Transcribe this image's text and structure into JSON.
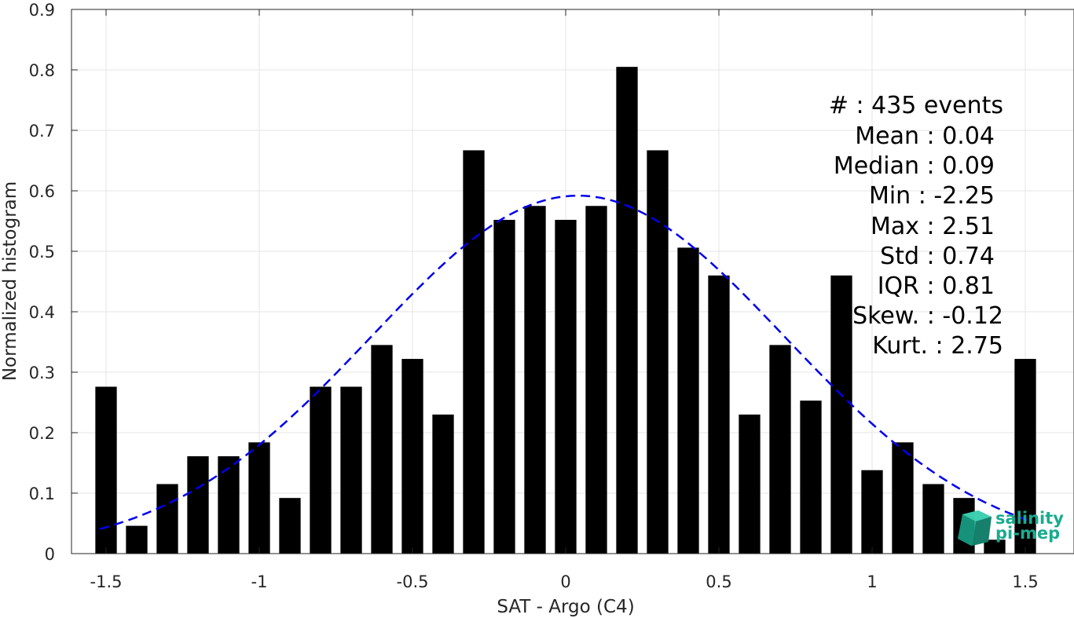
{
  "chart_data": {
    "type": "bar",
    "xlabel": "SAT - Argo (C4)",
    "ylabel": "Normalized histogram",
    "xlim": [
      -1.6,
      1.6
    ],
    "ylim": [
      0,
      0.9
    ],
    "xticks": [
      "-1.5",
      "-1",
      "-0.5",
      "0",
      "0.5",
      "1",
      "1.5"
    ],
    "yticks": [
      "0",
      "0.1",
      "0.2",
      "0.3",
      "0.4",
      "0.5",
      "0.6",
      "0.7",
      "0.8",
      "0.9"
    ],
    "grid": true,
    "bar_color": "#000000",
    "fit_color": "#0000ee",
    "bars": {
      "x": [
        -1.5,
        -1.4,
        -1.3,
        -1.2,
        -1.1,
        -1.0,
        -0.9,
        -0.8,
        -0.7,
        -0.6,
        -0.5,
        -0.4,
        -0.3,
        -0.2,
        -0.1,
        0.0,
        0.1,
        0.2,
        0.3,
        0.4,
        0.5,
        0.6,
        0.7,
        0.8,
        0.9,
        1.0,
        1.1,
        1.2,
        1.3,
        1.4,
        1.5
      ],
      "values": [
        0.276,
        0.046,
        0.115,
        0.161,
        0.161,
        0.184,
        0.092,
        0.276,
        0.276,
        0.345,
        0.322,
        0.23,
        0.667,
        0.552,
        0.575,
        0.552,
        0.575,
        0.805,
        0.667,
        0.506,
        0.46,
        0.23,
        0.345,
        0.253,
        0.46,
        0.138,
        0.184,
        0.115,
        0.092,
        0.023,
        0.322
      ]
    },
    "fit": {
      "style": "dashed",
      "mean": 0.04,
      "std": 0.674,
      "peak": 0.592,
      "x_range": [
        -1.52,
        1.52
      ]
    },
    "stats": [
      {
        "label": "#  : 435 events"
      },
      {
        "label": "Mean : 0.04"
      },
      {
        "label": "Median : 0.09"
      },
      {
        "label": "Min : -2.25"
      },
      {
        "label": "Max : 2.51"
      },
      {
        "label": "Std : 0.74"
      },
      {
        "label": "IQR : 0.81"
      },
      {
        "label": "Skew. : -0.12"
      },
      {
        "label": "Kurt. : 2.75"
      }
    ]
  },
  "logo": {
    "line1": "salinity",
    "line2": "pi-mep",
    "color": "#1aab8f"
  }
}
